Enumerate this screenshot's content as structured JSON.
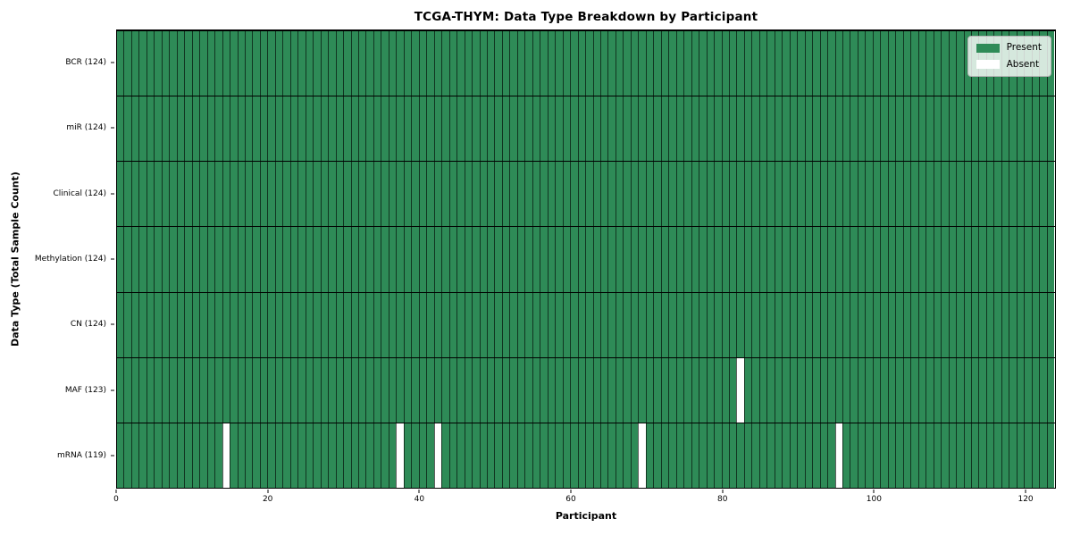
{
  "chart_data": {
    "type": "heatmap",
    "title": "TCGA-THYM: Data Type Breakdown by Participant",
    "xlabel": "Participant",
    "ylabel": "Data Type (Total Sample Count)",
    "xlim": [
      0,
      124
    ],
    "x_ticks": [
      0,
      20,
      40,
      60,
      80,
      100,
      120
    ],
    "n_participants": 124,
    "grid": "column-separators",
    "present_color": "#2e8b57",
    "absent_color": "#ffffff",
    "cell_edge_color": "rgba(0,0,0,0.62)",
    "row_separator_color": "#000000",
    "frame_color": "#000000",
    "rows": [
      {
        "label": "BCR (124)",
        "data_type": "BCR",
        "present_count": 124,
        "absent_participants": []
      },
      {
        "label": "miR (124)",
        "data_type": "miR",
        "present_count": 124,
        "absent_participants": []
      },
      {
        "label": "Clinical (124)",
        "data_type": "Clinical",
        "present_count": 124,
        "absent_participants": []
      },
      {
        "label": "Methylation (124)",
        "data_type": "Methylation",
        "present_count": 124,
        "absent_participants": []
      },
      {
        "label": "CN (124)",
        "data_type": "CN",
        "present_count": 124,
        "absent_participants": []
      },
      {
        "label": "MAF (123)",
        "data_type": "MAF",
        "present_count": 123,
        "absent_participants": [
          82
        ]
      },
      {
        "label": "mRNA (119)",
        "data_type": "mRNA",
        "present_count": 119,
        "absent_participants": [
          14,
          37,
          42,
          69,
          95
        ]
      }
    ],
    "legend": [
      {
        "label": "Present",
        "color": "#2e8b57"
      },
      {
        "label": "Absent",
        "color": "#ffffff"
      }
    ],
    "legend_position": "upper right"
  }
}
